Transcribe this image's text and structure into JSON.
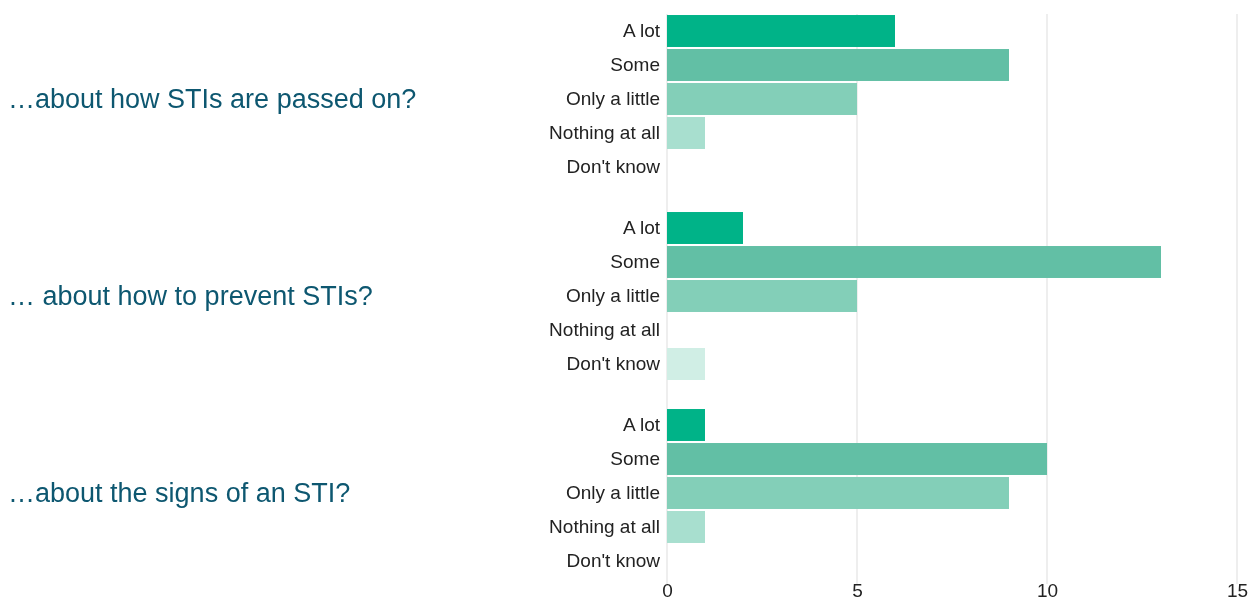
{
  "chart_data": [
    {
      "type": "bar",
      "orientation": "horizontal",
      "ylabel": "…about how STIs are passed on?",
      "categories": [
        "A lot",
        "Some",
        "Only a little",
        "Nothing at all",
        "Don't know"
      ],
      "values": [
        6,
        9,
        5,
        1,
        0
      ],
      "colors": [
        "#00b388",
        "#62bfa5",
        "#83cfb8",
        "#a8dfcf",
        "#d0eee5"
      ],
      "xlim": [
        0,
        15
      ],
      "xticks": [
        0,
        5,
        10,
        15
      ],
      "grid": "x",
      "tick_labels": "y"
    },
    {
      "type": "bar",
      "orientation": "horizontal",
      "ylabel": "… about how to prevent STIs?",
      "categories": [
        "A lot",
        "Some",
        "Only a little",
        "Nothing at all",
        "Don't know"
      ],
      "values": [
        2,
        13,
        5,
        0,
        1
      ],
      "colors": [
        "#00b388",
        "#62bfa5",
        "#83cfb8",
        "#a8dfcf",
        "#d0eee5"
      ],
      "xlim": [
        0,
        15
      ],
      "xticks": [
        0,
        5,
        10,
        15
      ],
      "grid": "x",
      "tick_labels": "y"
    },
    {
      "type": "bar",
      "orientation": "horizontal",
      "ylabel": "…about the signs of an STI?",
      "categories": [
        "A lot",
        "Some",
        "Only a little",
        "Nothing at all",
        "Don't know"
      ],
      "values": [
        1,
        10,
        9,
        1,
        0
      ],
      "colors": [
        "#00b388",
        "#62bfa5",
        "#83cfb8",
        "#a8dfcf",
        "#d0eee5"
      ],
      "xlim": [
        0,
        15
      ],
      "xticks": [
        0,
        5,
        10,
        15
      ],
      "grid": "x"
    }
  ]
}
